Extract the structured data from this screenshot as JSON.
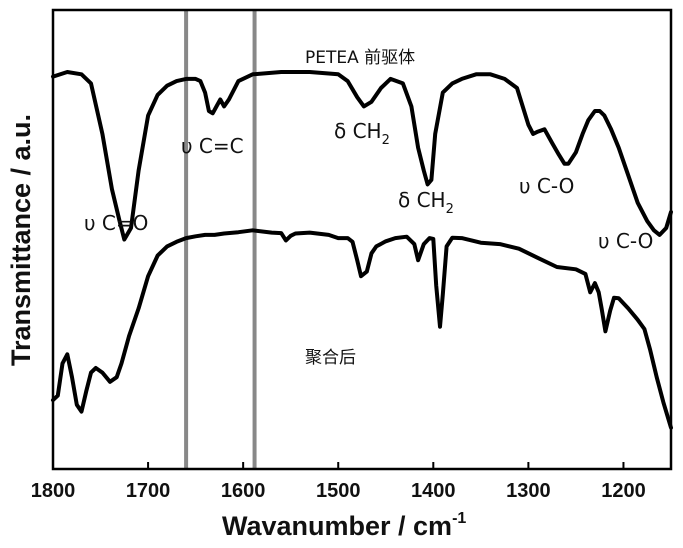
{
  "chart_data": {
    "type": "line",
    "xlabel": "Wavanumber / cm",
    "xlabel_sup": "-1",
    "ylabel": "Transmittance / a.u.",
    "xlim": [
      1800,
      1150
    ],
    "x_reversed": true,
    "ylim": [
      0,
      100
    ],
    "y_ticks_shown": false,
    "x_ticks": [
      "1800",
      "1700",
      "1600",
      "1500",
      "1400",
      "1300",
      "1200"
    ],
    "x_tick_values": [
      1800,
      1700,
      1600,
      1500,
      1400,
      1300,
      1200
    ],
    "reference_lines": [
      1660,
      1588
    ],
    "series": [
      {
        "name": "PETEA 前驱体",
        "x": [
          1800,
          1785,
          1770,
          1760,
          1748,
          1738,
          1730,
          1725,
          1718,
          1710,
          1700,
          1690,
          1680,
          1670,
          1660,
          1650,
          1645,
          1640,
          1636,
          1632,
          1628,
          1624,
          1620,
          1615,
          1605,
          1590,
          1560,
          1530,
          1500,
          1490,
          1480,
          1473,
          1465,
          1455,
          1445,
          1432,
          1423,
          1416,
          1410,
          1406,
          1402,
          1398,
          1390,
          1380,
          1370,
          1355,
          1340,
          1325,
          1312,
          1300,
          1295,
          1290,
          1283,
          1275,
          1268,
          1262,
          1258,
          1250,
          1243,
          1237,
          1230,
          1225,
          1220,
          1213,
          1205,
          1195,
          1185,
          1175,
          1168,
          1162,
          1155,
          1150
        ],
        "y": [
          85.5,
          86.5,
          86,
          84,
          73,
          61,
          54,
          50,
          52.5,
          65,
          77,
          81.5,
          83.5,
          84.5,
          85,
          85,
          84.5,
          82,
          78,
          77.5,
          79,
          80.5,
          79,
          80.5,
          84.5,
          86,
          86.5,
          86.5,
          86,
          84.5,
          81,
          79,
          80,
          83,
          85,
          84,
          79,
          70,
          65,
          62,
          63,
          73,
          82,
          84,
          85,
          86,
          86,
          85,
          83,
          75,
          73,
          73.5,
          74,
          71,
          68.5,
          66.5,
          66.5,
          69,
          73,
          76,
          78,
          78,
          77,
          74,
          70,
          64,
          58,
          54,
          52,
          51,
          52.5,
          56
        ]
      },
      {
        "name": "聚合后",
        "x": [
          1800,
          1795,
          1790,
          1785,
          1780,
          1775,
          1770,
          1765,
          1760,
          1755,
          1748,
          1740,
          1733,
          1728,
          1720,
          1710,
          1700,
          1690,
          1680,
          1670,
          1660,
          1650,
          1640,
          1630,
          1620,
          1605,
          1590,
          1570,
          1560,
          1555,
          1550,
          1545,
          1530,
          1510,
          1500,
          1490,
          1485,
          1480,
          1476,
          1470,
          1465,
          1460,
          1450,
          1440,
          1428,
          1420,
          1416,
          1410,
          1404,
          1400,
          1397,
          1393,
          1390,
          1386,
          1380,
          1370,
          1350,
          1330,
          1310,
          1290,
          1270,
          1250,
          1240,
          1235,
          1230,
          1226,
          1223,
          1219,
          1214,
          1210,
          1205,
          1195,
          1185,
          1178,
          1172,
          1165,
          1158,
          1150
        ],
        "y": [
          15,
          16,
          23,
          25,
          20,
          14,
          12.5,
          17,
          21,
          22,
          21,
          19,
          20,
          23,
          29,
          35,
          42,
          46.5,
          48.5,
          49.5,
          50.3,
          50.7,
          51,
          51,
          51.3,
          51.6,
          52,
          51.5,
          51.4,
          49.8,
          50.8,
          51.3,
          51.5,
          51,
          50.3,
          50.3,
          49.5,
          45.5,
          42,
          43,
          47,
          48.5,
          49.6,
          50.3,
          50.6,
          49,
          45.5,
          49,
          50.3,
          50.1,
          40,
          31,
          38,
          48.5,
          50.4,
          50.3,
          49.3,
          49,
          48,
          46,
          44,
          43.5,
          42.5,
          38.5,
          40.5,
          38.5,
          35,
          30,
          34.5,
          37.3,
          37.2,
          35,
          32.5,
          30.5,
          26,
          20,
          14.5,
          9
        ]
      }
    ],
    "annotations": [
      {
        "text": "υ C=O"
      },
      {
        "text": "υ C=C"
      },
      {
        "text": "δ CH",
        "sub": "2"
      },
      {
        "text": "δ CH",
        "sub": "2"
      },
      {
        "text": "υ C-O"
      },
      {
        "text": "υ C-O"
      }
    ],
    "grid": false,
    "legend": "none"
  }
}
